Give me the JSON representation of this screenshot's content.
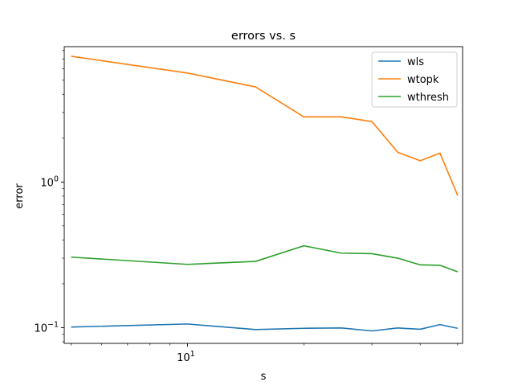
{
  "chart_data": {
    "type": "line",
    "title": "errors vs. s",
    "xlabel": "s",
    "ylabel": "error",
    "xscale": "log",
    "yscale": "log",
    "xlim": [
      4.8,
      51.5
    ],
    "ylim": [
      0.078,
      8.5
    ],
    "xticks": [
      {
        "value": 10,
        "label": "10",
        "sup": "1"
      }
    ],
    "yticks": [
      {
        "value": 0.1,
        "label": "10",
        "sup": "−1"
      },
      {
        "value": 1,
        "label": "10",
        "sup": "0"
      }
    ],
    "x": [
      5,
      10,
      15,
      20,
      25,
      30,
      35,
      40,
      45,
      50
    ],
    "series": [
      {
        "name": "wls",
        "color": "#1f77b4",
        "values": [
          0.101,
          0.106,
          0.097,
          0.099,
          0.0995,
          0.095,
          0.0995,
          0.0975,
          0.105,
          0.099
        ]
      },
      {
        "name": "wtopk",
        "color": "#ff7f0e",
        "values": [
          7.3,
          5.6,
          4.5,
          2.8,
          2.8,
          2.6,
          1.6,
          1.4,
          1.58,
          0.81
        ]
      },
      {
        "name": "wthresh",
        "color": "#2ca02c",
        "values": [
          0.305,
          0.272,
          0.285,
          0.365,
          0.325,
          0.322,
          0.3,
          0.27,
          0.268,
          0.242
        ]
      }
    ],
    "legend": "top-right",
    "grid": false
  }
}
